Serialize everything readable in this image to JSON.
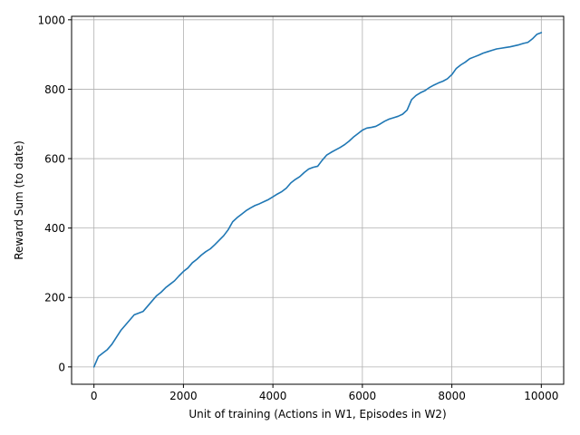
{
  "chart_data": {
    "type": "line",
    "title": "",
    "xlabel": "Unit of training (Actions in W1, Episodes in W2)",
    "ylabel": "Reward Sum (to date)",
    "xlim": [
      -500,
      10500
    ],
    "ylim": [
      -50,
      1010
    ],
    "x_ticks": [
      0,
      2000,
      4000,
      6000,
      8000,
      10000
    ],
    "x_tick_labels": [
      "0",
      "2000",
      "4000",
      "6000",
      "8000",
      "10000"
    ],
    "y_ticks": [
      0,
      200,
      400,
      600,
      800,
      1000
    ],
    "y_tick_labels": [
      "0",
      "200",
      "400",
      "600",
      "800",
      "1000"
    ],
    "grid": true,
    "series": [
      {
        "name": "",
        "color": "#1f77b4",
        "x": [
          0,
          100,
          200,
          300,
          400,
          500,
          600,
          700,
          800,
          900,
          1000,
          1100,
          1200,
          1300,
          1400,
          1500,
          1600,
          1700,
          1800,
          1900,
          2000,
          2100,
          2200,
          2300,
          2400,
          2500,
          2600,
          2700,
          2800,
          2900,
          3000,
          3100,
          3200,
          3300,
          3400,
          3500,
          3600,
          3700,
          3800,
          3900,
          4000,
          4100,
          4200,
          4300,
          4400,
          4500,
          4600,
          4700,
          4800,
          4900,
          5000,
          5100,
          5200,
          5300,
          5400,
          5500,
          5600,
          5700,
          5800,
          5900,
          6000,
          6100,
          6200,
          6300,
          6400,
          6500,
          6600,
          6700,
          6800,
          6900,
          7000,
          7100,
          7200,
          7300,
          7400,
          7500,
          7600,
          7700,
          7800,
          7900,
          8000,
          8100,
          8200,
          8300,
          8400,
          8500,
          8600,
          8700,
          8800,
          8900,
          9000,
          9100,
          9200,
          9300,
          9400,
          9500,
          9600,
          9700,
          9800,
          9900,
          10000
        ],
        "y": [
          0,
          30,
          40,
          50,
          65,
          85,
          105,
          120,
          135,
          150,
          155,
          160,
          175,
          190,
          205,
          215,
          228,
          238,
          248,
          262,
          275,
          285,
          300,
          310,
          322,
          332,
          340,
          352,
          365,
          378,
          395,
          418,
          430,
          440,
          450,
          458,
          465,
          470,
          476,
          482,
          490,
          498,
          505,
          515,
          530,
          540,
          548,
          560,
          570,
          575,
          578,
          595,
          610,
          618,
          625,
          632,
          640,
          650,
          662,
          672,
          682,
          688,
          690,
          693,
          700,
          708,
          714,
          718,
          722,
          728,
          740,
          770,
          782,
          790,
          796,
          805,
          812,
          818,
          823,
          830,
          842,
          860,
          870,
          878,
          888,
          893,
          898,
          904,
          908,
          912,
          916,
          918,
          920,
          922,
          925,
          928,
          932,
          935,
          945,
          958,
          963
        ]
      }
    ]
  }
}
